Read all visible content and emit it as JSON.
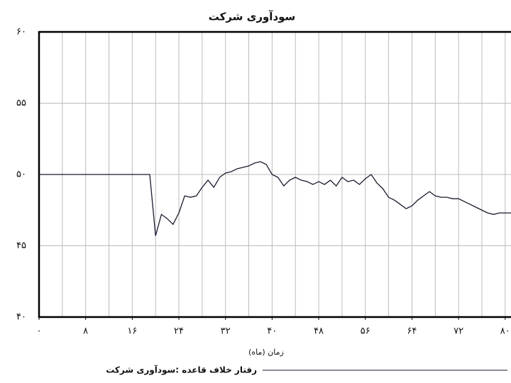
{
  "chart_data": {
    "type": "line",
    "title": "سودآوری شرکت",
    "x_label": "زمان (ماه)",
    "x": [
      0,
      19,
      20,
      21,
      22,
      23,
      24,
      25,
      26,
      27,
      28,
      29,
      30,
      31,
      32,
      33,
      34,
      35,
      36,
      37,
      38,
      39,
      40,
      41,
      42,
      43,
      44,
      45,
      46,
      47,
      48,
      49,
      50,
      51,
      52,
      53,
      54,
      55,
      56,
      57,
      58,
      59,
      60,
      61,
      62,
      63,
      64,
      65,
      66,
      67,
      68,
      69,
      70,
      71,
      72,
      73,
      74,
      75,
      76,
      77,
      78,
      79,
      80,
      81
    ],
    "series": [
      {
        "name": "رفتار خلاف قاعده :سودآوری شرکت",
        "color": "#1a1a2e",
        "values": [
          50,
          50,
          45.7,
          47.2,
          46.9,
          46.5,
          47.3,
          48.5,
          48.4,
          48.5,
          49.1,
          49.6,
          49.1,
          49.8,
          50.1,
          50.2,
          50.4,
          50.5,
          50.6,
          50.8,
          50.9,
          50.7,
          50.0,
          49.8,
          49.2,
          49.6,
          49.8,
          49.6,
          49.5,
          49.3,
          49.5,
          49.3,
          49.6,
          49.2,
          49.8,
          49.5,
          49.6,
          49.3,
          49.7,
          50.0,
          49.4,
          49.0,
          48.4,
          48.2,
          47.9,
          47.6,
          47.8,
          48.2,
          48.5,
          48.8,
          48.5,
          48.4,
          48.4,
          48.3,
          48.3,
          48.1,
          47.9,
          47.7,
          47.5,
          47.3,
          47.2,
          47.3,
          47.3,
          47.3
        ]
      }
    ],
    "xlim": [
      0,
      81
    ],
    "ylim": [
      40,
      60
    ],
    "xticks": [
      {
        "value": 0,
        "label": "۰"
      },
      {
        "value": 8,
        "label": "۸"
      },
      {
        "value": 16,
        "label": "۱۶"
      },
      {
        "value": 24,
        "label": "۲۴"
      },
      {
        "value": 32,
        "label": "۳۲"
      },
      {
        "value": 40,
        "label": "۴۰"
      },
      {
        "value": 48,
        "label": "۴۸"
      },
      {
        "value": 56,
        "label": "۵۶"
      },
      {
        "value": 64,
        "label": "۶۴"
      },
      {
        "value": 72,
        "label": "۷۲"
      },
      {
        "value": 80,
        "label": "۸۰"
      }
    ],
    "yticks": [
      {
        "value": 40,
        "label": "۴۰"
      },
      {
        "value": 45,
        "label": "۴۵"
      },
      {
        "value": 50,
        "label": "۵۰"
      },
      {
        "value": 55,
        "label": "۵۵"
      },
      {
        "value": 60,
        "label": "۶۰"
      }
    ],
    "xgrid": [
      4,
      8,
      12,
      16,
      20,
      24,
      28,
      32,
      36,
      40,
      44,
      48,
      52,
      56,
      60,
      64,
      68,
      72,
      76,
      80
    ],
    "grid": true
  }
}
